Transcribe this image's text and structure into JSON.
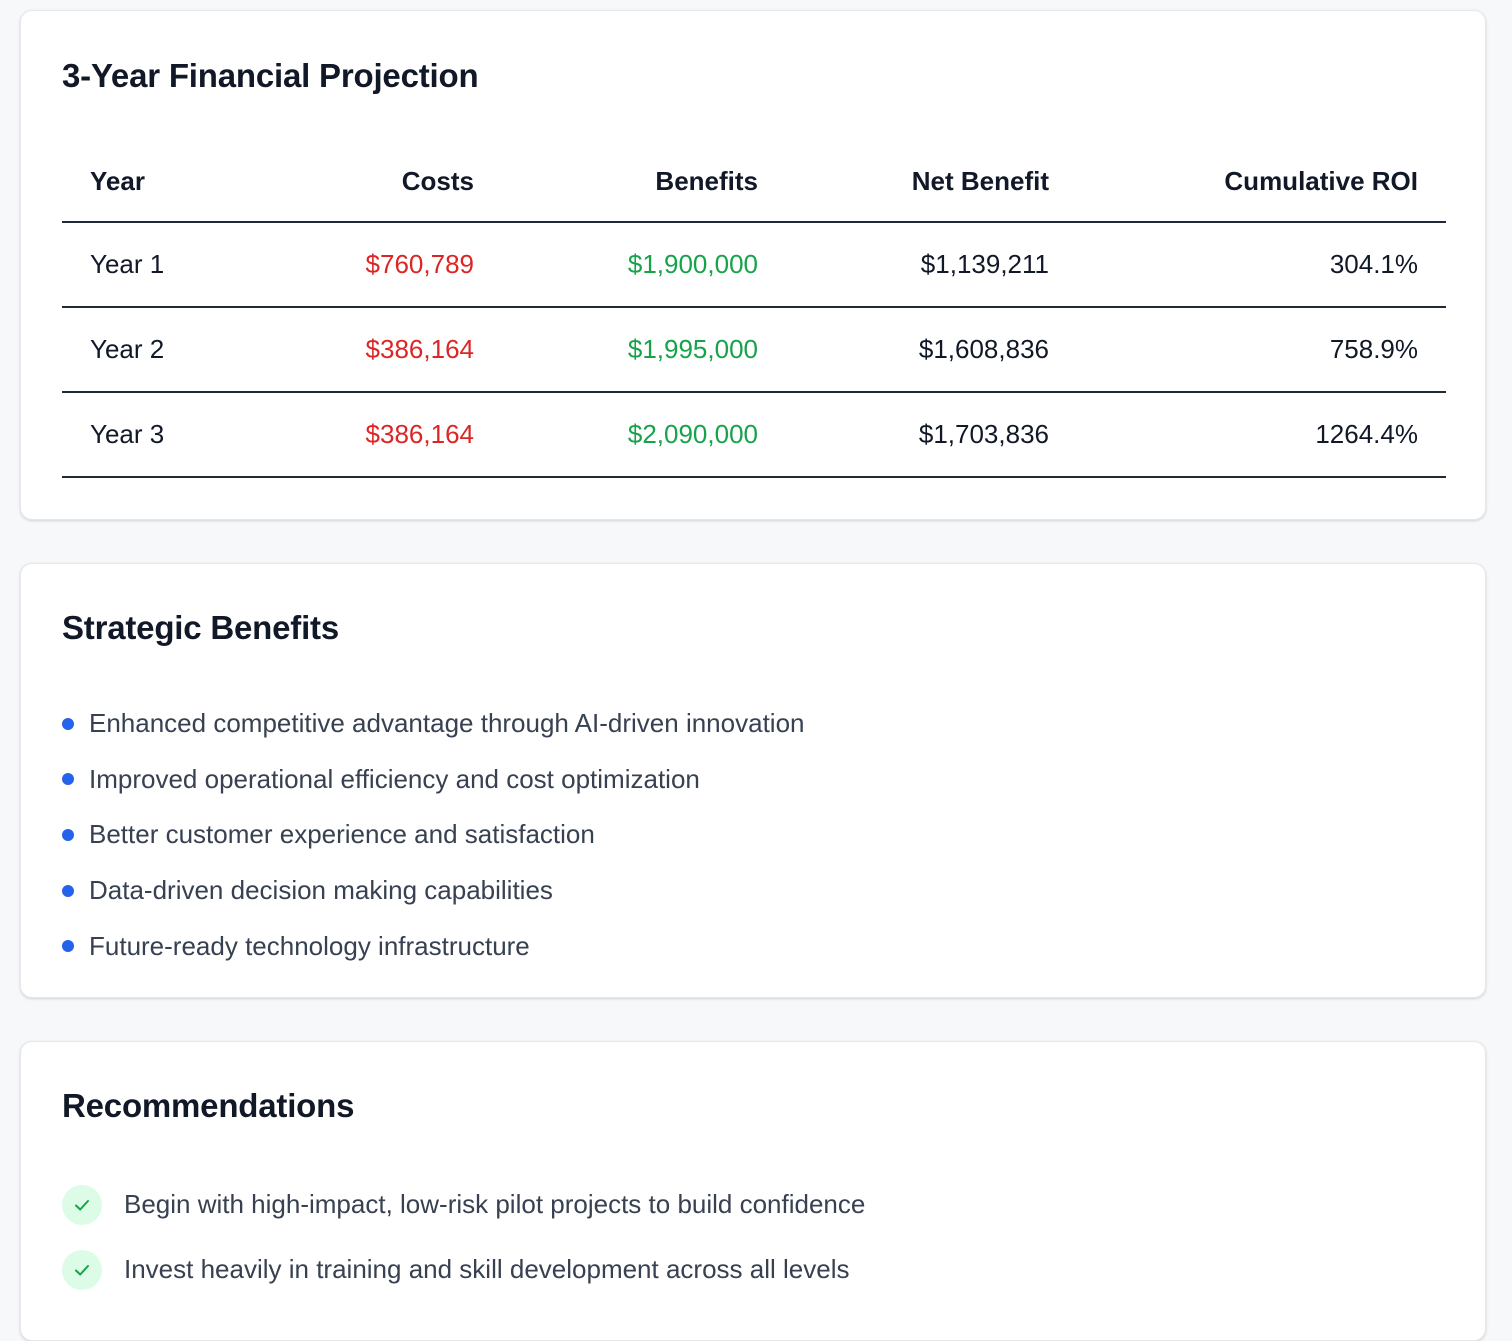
{
  "financial": {
    "title": "3-Year Financial Projection",
    "headers": {
      "year": "Year",
      "costs": "Costs",
      "benefits": "Benefits",
      "net": "Net Benefit",
      "roi": "Cumulative ROI"
    },
    "rows": [
      {
        "year": "Year 1",
        "costs": "$760,789",
        "benefits": "$1,900,000",
        "net": "$1,139,211",
        "roi": "304.1%"
      },
      {
        "year": "Year 2",
        "costs": "$386,164",
        "benefits": "$1,995,000",
        "net": "$1,608,836",
        "roi": "758.9%"
      },
      {
        "year": "Year 3",
        "costs": "$386,164",
        "benefits": "$2,090,000",
        "net": "$1,703,836",
        "roi": "1264.4%"
      }
    ]
  },
  "strategic": {
    "title": "Strategic Benefits",
    "items": [
      "Enhanced competitive advantage through AI-driven innovation",
      "Improved operational efficiency and cost optimization",
      "Better customer experience and satisfaction",
      "Data-driven decision making capabilities",
      "Future-ready technology infrastructure"
    ]
  },
  "recommendations": {
    "title": "Recommendations",
    "items": [
      "Begin with high-impact, low-risk pilot projects to build confidence",
      "Invest heavily in training and skill development across all levels"
    ]
  },
  "colors": {
    "cost": "#dc2626",
    "benefit": "#16a34a",
    "bullet": "#2563eb",
    "check_bg": "#dcfce7",
    "check": "#16a34a"
  }
}
